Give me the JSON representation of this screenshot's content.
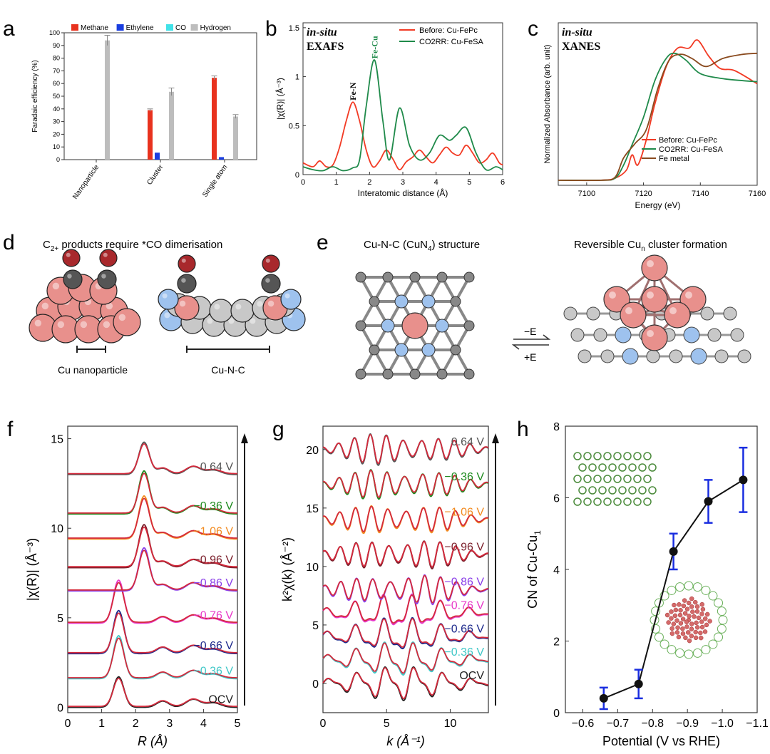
{
  "chart_data": [
    {
      "panel": "a",
      "type": "bar",
      "ylabel": "Faradaic efficiency (%)",
      "ylim": [
        0,
        100
      ],
      "yticks": [
        "0",
        "10",
        "20",
        "30",
        "40",
        "50",
        "60",
        "70",
        "80",
        "90",
        "100"
      ],
      "categories": [
        "Nanoparticle",
        "Cluster",
        "Single atom"
      ],
      "series": [
        {
          "name": "Methane",
          "color": "#e8321e",
          "values": [
            0,
            39,
            64.5
          ],
          "errors": [
            0,
            1,
            1.5
          ]
        },
        {
          "name": "Ethylene",
          "color": "#1a3ee0",
          "values": [
            0,
            5.5,
            2
          ],
          "errors": [
            0,
            0,
            0
          ]
        },
        {
          "name": "CO",
          "color": "#41e2e8",
          "values": [
            0,
            0,
            0
          ],
          "errors": [
            0,
            0,
            0
          ]
        },
        {
          "name": "Hydrogen",
          "color": "#bdbdbd",
          "values": [
            94,
            53.5,
            34
          ],
          "errors": [
            4,
            3,
            1.5
          ]
        }
      ]
    },
    {
      "panel": "b",
      "type": "line",
      "annotation_top": "in-situ",
      "annotation_main": "EXAFS",
      "xlabel": "Interatomic distance (Å)",
      "ylabel": "|χ(R)| (Å⁻³)",
      "xlim": [
        0,
        6
      ],
      "ylim": [
        0,
        1.55
      ],
      "xticks": [
        "0",
        "1",
        "2",
        "3",
        "4",
        "5",
        "6"
      ],
      "yticks": [
        "0",
        "0.5",
        "1",
        "1.5"
      ],
      "peak_labels": [
        "Fe-N",
        "Fe-Cu"
      ],
      "series": [
        {
          "name": "Before: Cu-FePc",
          "color": "#f23a24",
          "x": [
            0,
            0.3,
            0.5,
            0.7,
            0.9,
            1.1,
            1.3,
            1.5,
            1.7,
            1.9,
            2.1,
            2.3,
            2.5,
            2.7,
            2.9,
            3.1,
            3.3,
            3.5,
            3.7,
            3.9,
            4.1,
            4.3,
            4.5,
            4.7,
            4.9,
            5.1,
            5.3,
            5.5,
            5.7,
            5.9,
            6.0
          ],
          "y": [
            0.12,
            0.08,
            0.14,
            0.08,
            0.1,
            0.28,
            0.55,
            0.74,
            0.55,
            0.25,
            0.08,
            0.14,
            0.25,
            0.16,
            0.05,
            0.13,
            0.18,
            0.25,
            0.18,
            0.12,
            0.2,
            0.28,
            0.22,
            0.2,
            0.3,
            0.22,
            0.12,
            0.15,
            0.22,
            0.12,
            0.1
          ]
        },
        {
          "name": "CO2RR: Cu-FeSA",
          "color": "#1f8a4a",
          "x": [
            0,
            0.3,
            0.6,
            0.9,
            1.2,
            1.5,
            1.7,
            1.9,
            2.15,
            2.4,
            2.6,
            2.9,
            3.2,
            3.5,
            3.8,
            4.1,
            4.4,
            4.6,
            4.9,
            5.2,
            5.5,
            5.8,
            6.0
          ],
          "y": [
            0.08,
            0.05,
            0.04,
            0.08,
            0.04,
            0.07,
            0.15,
            0.7,
            1.17,
            0.55,
            0.15,
            0.68,
            0.3,
            0.15,
            0.22,
            0.4,
            0.35,
            0.4,
            0.48,
            0.22,
            0.05,
            0.08,
            0.05
          ]
        }
      ]
    },
    {
      "panel": "c",
      "type": "line",
      "annotation_top": "in-situ",
      "annotation_main": "XANES",
      "xlabel": "Energy (eV)",
      "ylabel": "Normalized Absorbance (arb. unit)",
      "xlim": [
        7090,
        7160
      ],
      "xticks": [
        "7100",
        "7120",
        "7140",
        "7160"
      ],
      "series": [
        {
          "name": "Before: Cu-FePc",
          "color": "#f23a24",
          "x": [
            7090,
            7105,
            7110,
            7114,
            7116,
            7118,
            7121,
            7124,
            7128,
            7132,
            7136,
            7139,
            7143,
            7147,
            7152,
            7160
          ],
          "y": [
            0.0,
            0.0,
            0.02,
            0.1,
            0.25,
            0.15,
            0.4,
            0.75,
            1.12,
            1.3,
            1.3,
            1.38,
            1.22,
            1.1,
            1.08,
            0.95
          ]
        },
        {
          "name": "CO2RR: Cu-FeSA",
          "color": "#1f8a4a",
          "x": [
            7090,
            7105,
            7110,
            7113,
            7116,
            7120,
            7124,
            7128,
            7131,
            7135,
            7140,
            7148,
            7155,
            7160
          ],
          "y": [
            0.0,
            0.0,
            0.02,
            0.15,
            0.35,
            0.62,
            0.98,
            1.2,
            1.25,
            1.18,
            1.05,
            1.0,
            0.98,
            0.97
          ]
        },
        {
          "name": "Fe metal",
          "color": "#8a4a1e",
          "x": [
            7090,
            7105,
            7110,
            7113,
            7117,
            7121,
            7125,
            7129,
            7133,
            7137,
            7142,
            7148,
            7155,
            7160
          ],
          "y": [
            0.0,
            0.0,
            0.03,
            0.22,
            0.36,
            0.5,
            0.9,
            1.18,
            1.24,
            1.2,
            1.12,
            1.2,
            1.24,
            1.25
          ]
        }
      ]
    },
    {
      "panel": "f",
      "type": "line",
      "xlabel": "R (Å)",
      "ylabel": "|χ(R)| (Å⁻³)",
      "xlim": [
        0,
        5
      ],
      "ylim": [
        -0.3,
        15.7
      ],
      "xticks": [
        "0",
        "1",
        "2",
        "3",
        "4",
        "5"
      ],
      "yticks": [
        "0",
        "5",
        "10",
        "15"
      ],
      "spectra": [
        {
          "label": "OCV",
          "offset": 0,
          "color": "#222222"
        },
        {
          "label": "−0.36 V",
          "offset": 1.6,
          "color": "#3fc7c7"
        },
        {
          "label": "−0.66 V",
          "offset": 3.0,
          "color": "#1e2a8c"
        },
        {
          "label": "−0.76 V",
          "offset": 4.7,
          "color": "#e838c8"
        },
        {
          "label": "−0.86 V",
          "offset": 6.5,
          "color": "#8a3ee8"
        },
        {
          "label": "−0.96 V",
          "offset": 7.8,
          "color": "#7a1e2a"
        },
        {
          "label": "−1.06 V",
          "offset": 9.4,
          "color": "#f28a1e"
        },
        {
          "label": "−0.36 V",
          "offset": 10.8,
          "color": "#1e8a1e"
        },
        {
          "label": "0.64 V",
          "offset": 13.0,
          "color": "#555555"
        }
      ]
    },
    {
      "panel": "g",
      "type": "line",
      "xlabel": "k (Å⁻¹)",
      "ylabel": "k²χ(k) (Å⁻²)",
      "xlim": [
        0,
        13
      ],
      "ylim": [
        -2.5,
        22
      ],
      "xticks": [
        "0",
        "5",
        "10"
      ],
      "yticks": [
        "0",
        "5",
        "10",
        "15",
        "20"
      ],
      "spectra": [
        {
          "label": "OCV",
          "offset": 0,
          "color": "#222222"
        },
        {
          "label": "−0.36 V",
          "offset": 2.0,
          "color": "#3fc7c7"
        },
        {
          "label": "−0.66 V",
          "offset": 4.0,
          "color": "#1e2a8c"
        },
        {
          "label": "−0.76 V",
          "offset": 6.0,
          "color": "#e838c8"
        },
        {
          "label": "−0.86 V",
          "offset": 8.0,
          "color": "#8a3ee8"
        },
        {
          "label": "−0.96 V",
          "offset": 11.0,
          "color": "#7a1e2a"
        },
        {
          "label": "−1.06 V",
          "offset": 14.0,
          "color": "#f28a1e"
        },
        {
          "label": "−0.36 V",
          "offset": 17.0,
          "color": "#1e8a1e"
        },
        {
          "label": "0.64 V",
          "offset": 20.0,
          "color": "#555555"
        }
      ]
    },
    {
      "panel": "h",
      "type": "scatter",
      "xlabel": "Potential (V vs RHE)",
      "ylabel": "CN of Cu-Cu",
      "ylabel_sub": "1",
      "xlim": [
        -0.55,
        -1.1
      ],
      "ylim": [
        0,
        8
      ],
      "xticks": [
        "−0.6",
        "−0.7",
        "−0.8",
        "−0.9",
        "−1.0",
        "−1.1"
      ],
      "yticks": [
        "0",
        "2",
        "4",
        "6",
        "8"
      ],
      "x": [
        -0.66,
        -0.76,
        -0.86,
        -0.96,
        -1.06
      ],
      "y": [
        0.4,
        0.8,
        4.5,
        5.9,
        6.5
      ],
      "errors": [
        0.3,
        0.4,
        0.5,
        0.6,
        0.9
      ]
    }
  ],
  "panels": {
    "a": "a",
    "b": "b",
    "c": "c",
    "d": "d",
    "e": "e",
    "f": "f",
    "g": "g",
    "h": "h"
  },
  "panel_d": {
    "title_main": "C",
    "title_sub": "2+",
    "title_rest": " products require *CO dimerisation",
    "label_left": "Cu nanoparticle",
    "label_right": "Cu-N-C"
  },
  "panel_e": {
    "title_left": "Cu-N-C (CuN",
    "title_left_sub": "4",
    "title_left_end": ") structure",
    "title_right": "Reversible Cu",
    "title_right_sub": "n",
    "title_right_end": " cluster formation",
    "arrow_top": "−E",
    "arrow_bottom": "+E"
  },
  "palette": {
    "cu": "#e8908c",
    "cu_dark": "#c85a5a",
    "c_grey": "#c8c8c8",
    "n_blue": "#9ec2ee",
    "o_red": "#a8282c",
    "c_dark": "#555555"
  }
}
